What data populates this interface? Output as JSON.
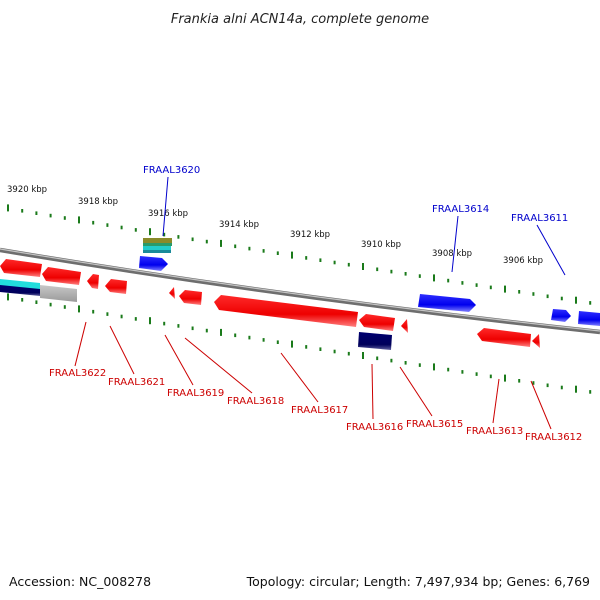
{
  "title": "Frankia alni ACN14a, complete genome",
  "footer": {
    "accession": "Accession: NC_008278",
    "summary": "Topology: circular; Length: 7,497,934 bp; Genes: 6,769"
  },
  "colors": {
    "forward_label": "#0000cc",
    "reverse_label": "#cc0000",
    "forward_gene": "#0000ff",
    "reverse_gene": "#ff0000",
    "tick": "#1a7a1a",
    "backbone": "#7a7a7a"
  },
  "kbp_ticks": [
    {
      "label": "3920 kbp",
      "major": true
    },
    {
      "label": "3918 kbp",
      "major": true
    },
    {
      "label": "3916 kbp",
      "major": true
    },
    {
      "label": "3914 kbp",
      "major": true
    },
    {
      "label": "3912 kbp",
      "major": true
    },
    {
      "label": "3910 kbp",
      "major": true
    },
    {
      "label": "3908 kbp",
      "major": true
    },
    {
      "label": "3906 kbp",
      "major": true
    }
  ],
  "forward_genes": [
    {
      "name": "FRAAL3620"
    },
    {
      "name": "FRAAL3614"
    },
    {
      "name": "FRAAL3611"
    }
  ],
  "reverse_genes": [
    {
      "name": "FRAAL3622"
    },
    {
      "name": "FRAAL3621"
    },
    {
      "name": "FRAAL3619"
    },
    {
      "name": "FRAAL3618"
    },
    {
      "name": "FRAAL3617"
    },
    {
      "name": "FRAAL3616"
    },
    {
      "name": "FRAAL3615"
    },
    {
      "name": "FRAAL3613"
    },
    {
      "name": "FRAAL3612"
    }
  ]
}
